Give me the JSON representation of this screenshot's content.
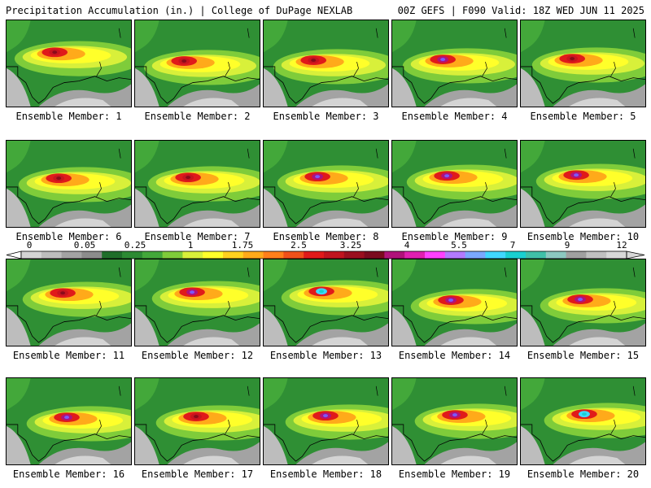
{
  "header": {
    "title_left": "Precipitation Accumulation (in.) | College of DuPage NEXLAB",
    "title_right": "00Z GEFS | F090 Valid: 18Z WED JUN 11 2025"
  },
  "colorbar": {
    "tick_labels": [
      "0",
      "0.05",
      "0.25",
      "1",
      "1.75",
      "2.5",
      "3.25",
      "4",
      "5.5",
      "7",
      "9",
      "12"
    ],
    "colors": [
      "#d4d4d4",
      "#bdbdbd",
      "#a3a3a3",
      "#8c8c8c",
      "#1f6e2a",
      "#2c8a33",
      "#43a83a",
      "#7fcc3a",
      "#d8f03a",
      "#ffff2a",
      "#ffd21f",
      "#ffaa1a",
      "#ff7f1a",
      "#f0501a",
      "#e01a1a",
      "#c0141e",
      "#9a0f1e",
      "#7a0a1e",
      "#b0127a",
      "#e020b0",
      "#ff40ff",
      "#b27aff",
      "#7aa8ff",
      "#40d8ff",
      "#1ad0d0",
      "#40c0a8",
      "#8cc8c0",
      "#a0a0a0",
      "#c0c0c0",
      "#d8d8d8"
    ]
  },
  "members": [
    {
      "label": "Ensemble Member: 1",
      "peak": "red"
    },
    {
      "label": "Ensemble Member: 2",
      "peak": "red"
    },
    {
      "label": "Ensemble Member: 3",
      "peak": "red"
    },
    {
      "label": "Ensemble Member: 4",
      "peak": "purple"
    },
    {
      "label": "Ensemble Member: 5",
      "peak": "red"
    },
    {
      "label": "Ensemble Member: 6",
      "peak": "red"
    },
    {
      "label": "Ensemble Member: 7",
      "peak": "red"
    },
    {
      "label": "Ensemble Member: 8",
      "peak": "purple"
    },
    {
      "label": "Ensemble Member: 9",
      "peak": "purple"
    },
    {
      "label": "Ensemble Member: 10",
      "peak": "purple"
    },
    {
      "label": "Ensemble Member: 11",
      "peak": "red"
    },
    {
      "label": "Ensemble Member: 12",
      "peak": "purple"
    },
    {
      "label": "Ensemble Member: 13",
      "peak": "cyan"
    },
    {
      "label": "Ensemble Member: 14",
      "peak": "purple"
    },
    {
      "label": "Ensemble Member: 15",
      "peak": "purple"
    },
    {
      "label": "Ensemble Member: 16",
      "peak": "purple"
    },
    {
      "label": "Ensemble Member: 17",
      "peak": "red"
    },
    {
      "label": "Ensemble Member: 18",
      "peak": "purple"
    },
    {
      "label": "Ensemble Member: 19",
      "peak": "purple"
    },
    {
      "label": "Ensemble Member: 20",
      "peak": "cyan"
    }
  ]
}
